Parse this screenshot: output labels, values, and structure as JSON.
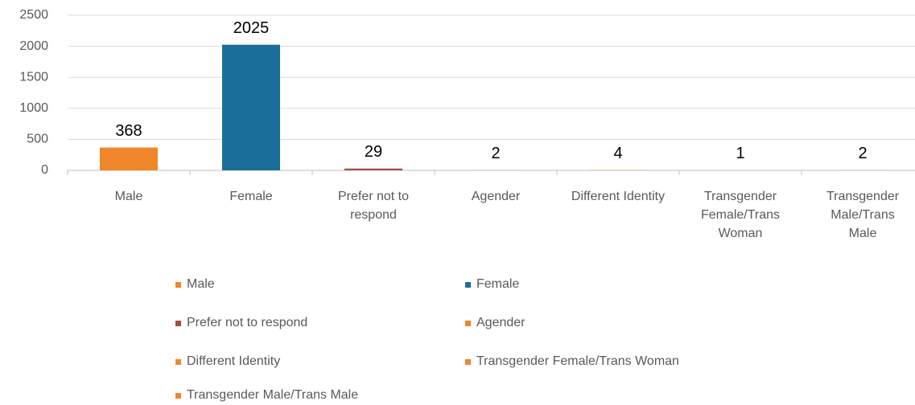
{
  "chart_data": {
    "type": "bar",
    "categories": [
      "Male",
      "Female",
      "Prefer not to respond",
      "Agender",
      "Different Identity",
      "Transgender Female/Trans Woman",
      "Transgender Male/Trans Male"
    ],
    "values": [
      368,
      2025,
      29,
      2,
      4,
      1,
      2
    ],
    "colors": [
      "#f0862a",
      "#1a6f9a",
      "#a34d45",
      "#f0862a",
      "#f0862a",
      "#f0862a",
      "#f0862a"
    ],
    "ylim": [
      0,
      2500
    ],
    "yticks": [
      0,
      500,
      1000,
      1500,
      2000,
      2500
    ],
    "grid": true
  }
}
